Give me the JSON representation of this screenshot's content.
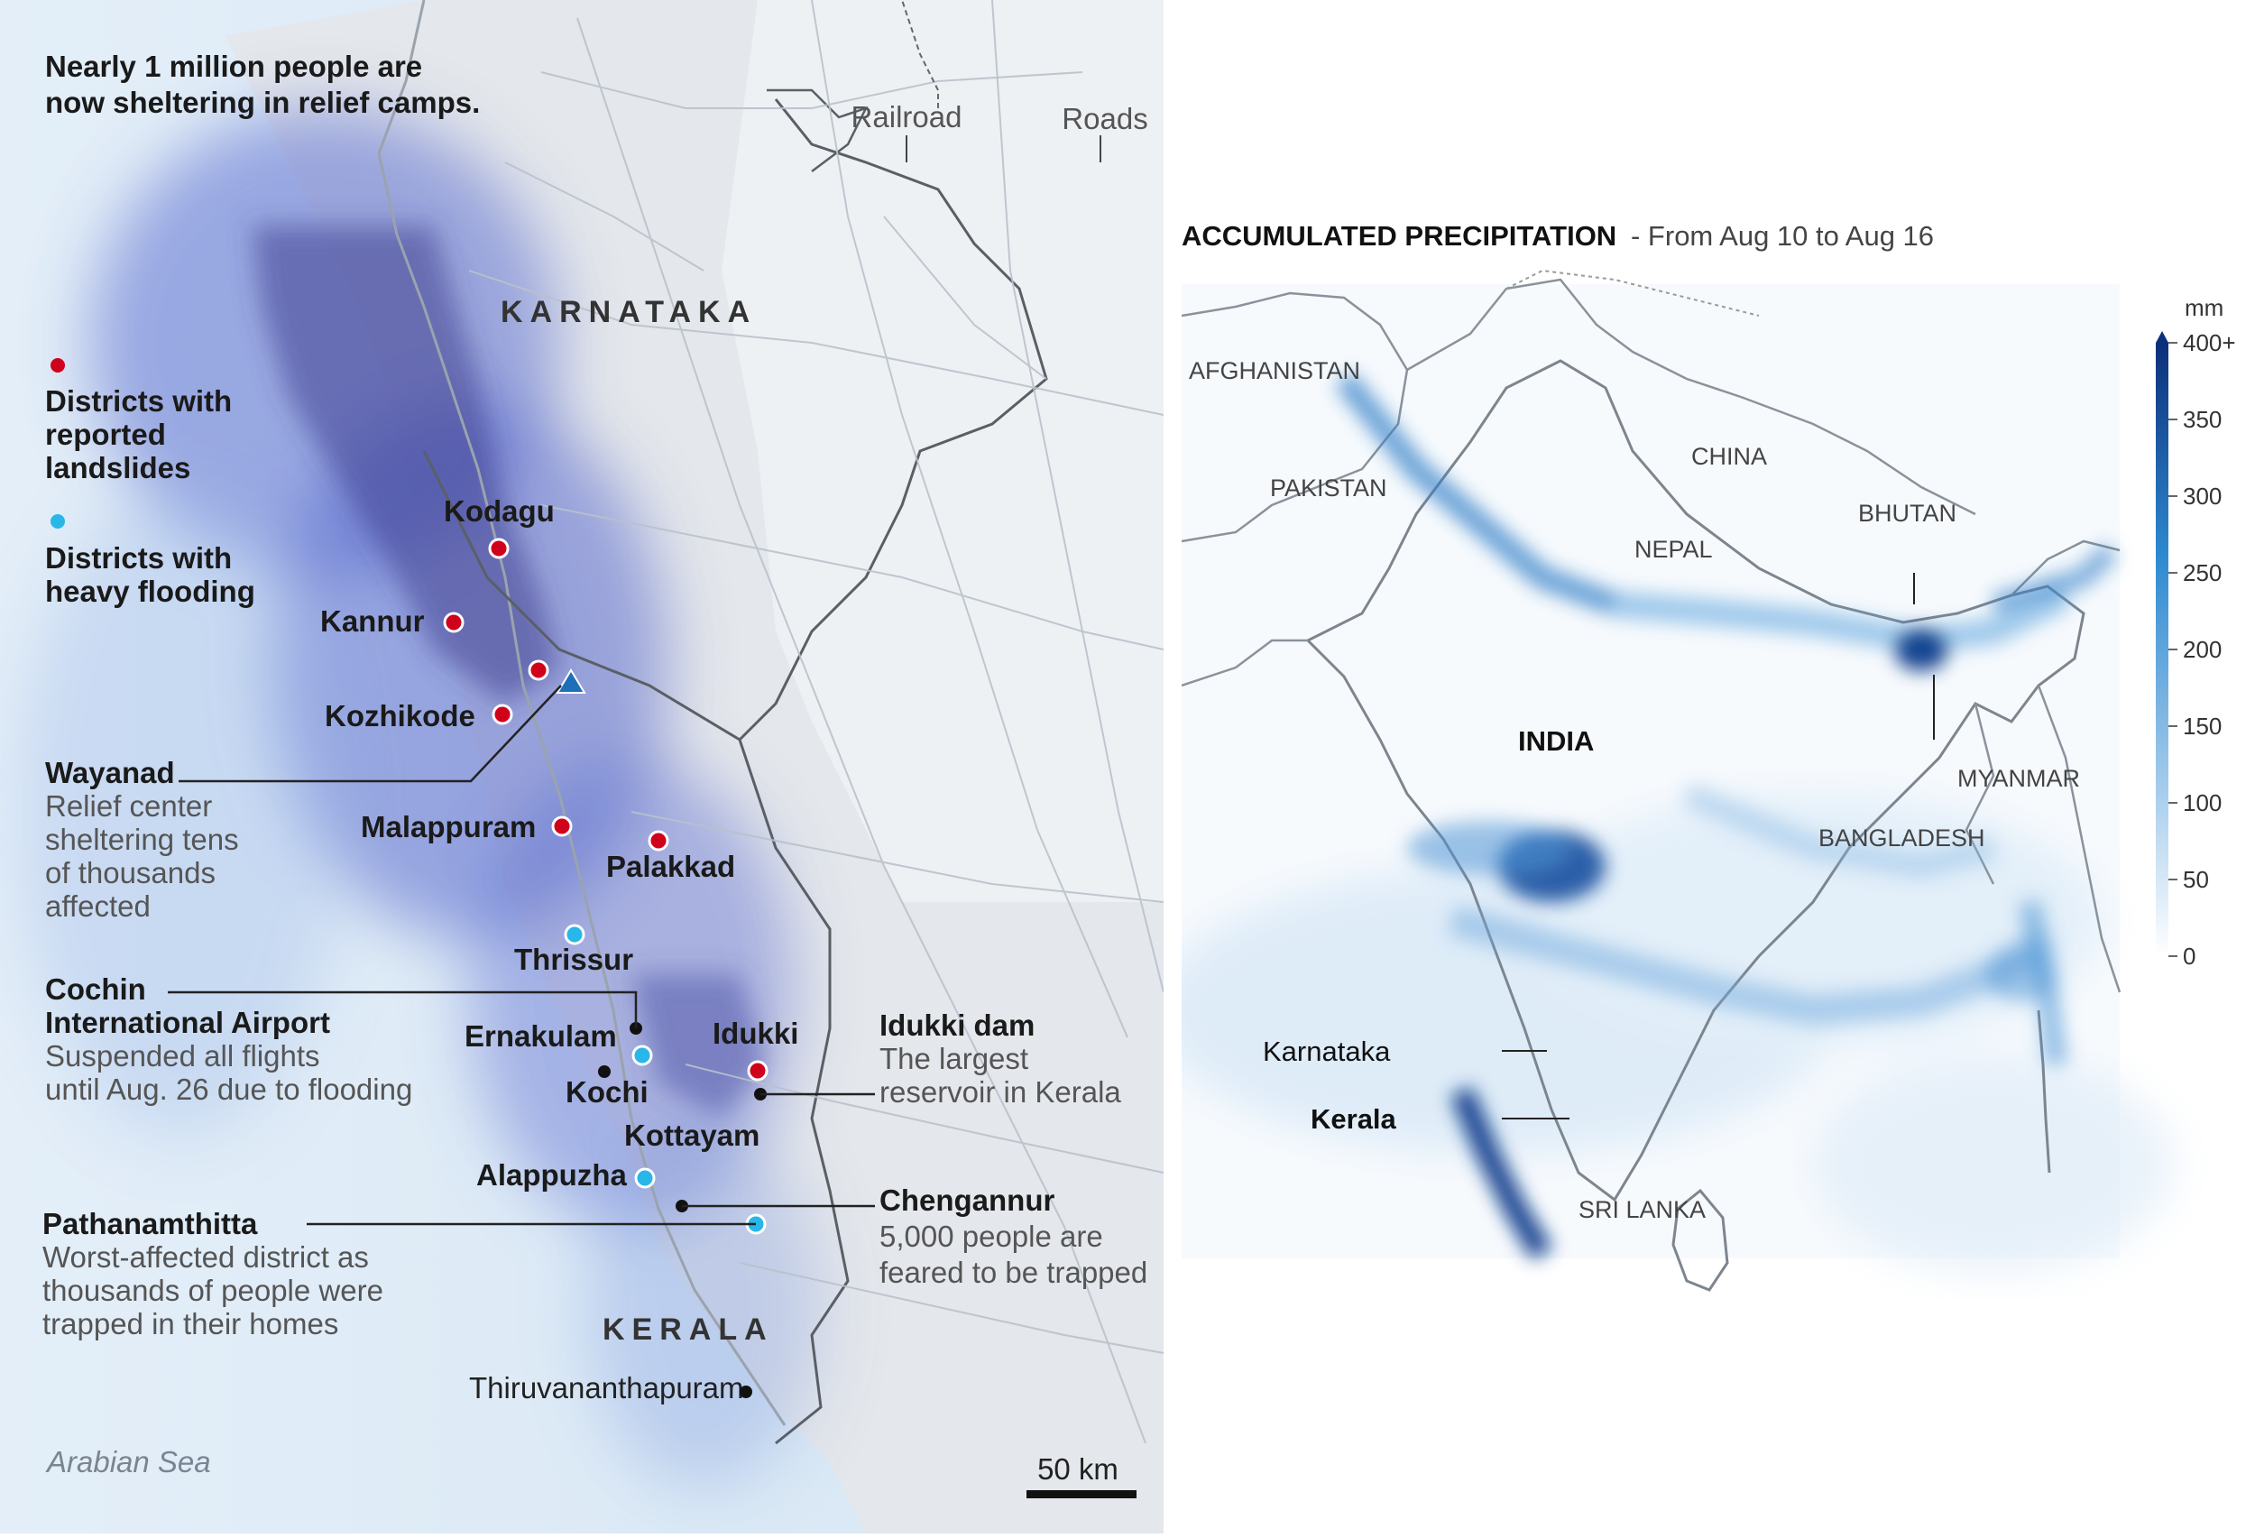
{
  "left": {
    "headline_line1": "Nearly 1 million people are",
    "headline_line2": "now sheltering in relief camps.",
    "legend_railroad": "Railroad",
    "legend_roads": "Roads",
    "state_karnataka": "KARNATAKA",
    "state_kerala": "KERALA",
    "legend_landslides_l1": "Districts with",
    "legend_landslides_l2": "reported",
    "legend_landslides_l3": "landslides",
    "legend_flooding_l1": "Districts with",
    "legend_flooding_l2": "heavy flooding",
    "landslide_color": "#d0021b",
    "flooding_color": "#29b6e8",
    "districts": {
      "kodagu": "Kodagu",
      "kannur": "Kannur",
      "kozhikode": "Kozhikode",
      "malappuram": "Malappuram",
      "palakkad": "Palakkad",
      "thrissur": "Thrissur",
      "ernakulam": "Ernakulam",
      "idukki": "Idukki",
      "kochi": "Kochi",
      "kottayam": "Kottayam",
      "alappuzha": "Alappuzha",
      "thiruvananthapuram": "Thiruvananthapuram"
    },
    "wayanad": {
      "title": "Wayanad",
      "l1": "Relief center",
      "l2": "sheltering tens",
      "l3": "of thousands",
      "l4": "affected"
    },
    "airport": {
      "title_l1": "Cochin",
      "title_l2": "International Airport",
      "l1": "Suspended all flights",
      "l2": "until Aug. 26 due to flooding"
    },
    "idukki_dam": {
      "title": "Idukki dam",
      "l1": "The largest",
      "l2": "reservoir in Kerala"
    },
    "chengannur": {
      "title": "Chengannur",
      "l1": "5,000 people are",
      "l2": "feared to be trapped"
    },
    "pathanamthitta": {
      "title": "Pathanamthitta",
      "l1": "Worst-affected district as",
      "l2": "thousands of people were",
      "l3": "trapped in their homes"
    },
    "sea": "Arabian Sea",
    "scale": "50 km"
  },
  "right": {
    "title": "ACCUMULATED PRECIPITATION",
    "subtitle": "- From Aug 10 to Aug 16",
    "countries": {
      "afghanistan": "AFGHANISTAN",
      "pakistan": "PAKISTAN",
      "china": "CHINA",
      "nepal": "NEPAL",
      "bhutan": "BHUTAN",
      "india": "INDIA",
      "myanmar": "MYANMAR",
      "bangladesh": "BANGLADESH",
      "srilanka": "SRI LANKA",
      "karnataka": "Karnataka",
      "kerala": "Kerala"
    },
    "scale": {
      "unit": "mm",
      "ticks": [
        "400+",
        "350",
        "300",
        "250",
        "200",
        "150",
        "100",
        "50",
        "0"
      ],
      "color_high": "#0b2f7a",
      "color_mid": "#2f8ad0",
      "color_low": "#ffffff"
    }
  }
}
